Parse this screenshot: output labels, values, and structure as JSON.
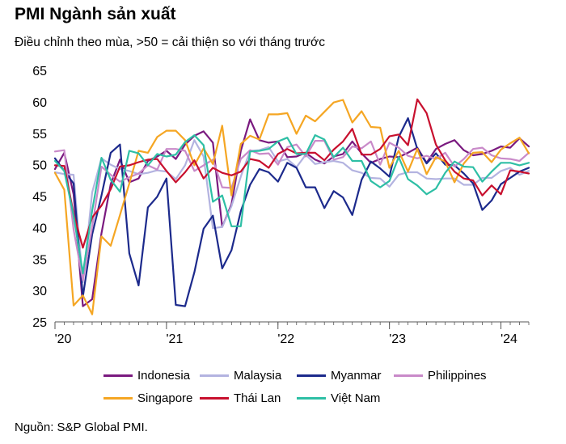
{
  "title": "PMI Ngành sản xuất",
  "subtitle": "Điều chỉnh theo mùa, >50 = cải thiện so với tháng trước",
  "source": "Nguồn: S&P Global PMI.",
  "chart_data": {
    "type": "line",
    "ylim": [
      25,
      65
    ],
    "yticks": [
      25,
      30,
      35,
      40,
      45,
      50,
      55,
      60,
      65
    ],
    "xticks": [
      {
        "label": "'20",
        "index": 0
      },
      {
        "label": "'21",
        "index": 12
      },
      {
        "label": "'22",
        "index": 24
      },
      {
        "label": "'23",
        "index": 36
      },
      {
        "label": "'24",
        "index": 48
      }
    ],
    "n_months": 52,
    "grid": false,
    "legend_position": "bottom",
    "series": [
      {
        "name": "Indonesia",
        "color": "#7a1a7f",
        "values": [
          49.3,
          51.9,
          45.3,
          27.5,
          28.6,
          39.1,
          46.9,
          50.8,
          47.2,
          47.8,
          50.6,
          51.3,
          52.2,
          50.9,
          53.2,
          54.6,
          55.3,
          53.5,
          40.1,
          43.7,
          52.2,
          57.2,
          53.9,
          53.5,
          53.7,
          51.2,
          51.3,
          51.9,
          50.8,
          50.2,
          51.3,
          51.7,
          53.7,
          51.8,
          50.3,
          50.9,
          51.3,
          51.2,
          51.9,
          52.7,
          50.3,
          52.5,
          53.3,
          53.9,
          52.3,
          51.5,
          51.7,
          52.2,
          52.9,
          52.7,
          54.2,
          52.9
        ]
      },
      {
        "name": "Malaysia",
        "color": "#b3b3e0",
        "values": [
          48.8,
          48.5,
          48.4,
          31.3,
          45.6,
          51.0,
          50.0,
          49.3,
          49.0,
          48.5,
          48.7,
          49.1,
          48.9,
          47.7,
          49.9,
          53.9,
          51.3,
          39.9,
          40.1,
          43.4,
          48.1,
          52.2,
          52.3,
          52.8,
          50.5,
          50.9,
          49.6,
          51.6,
          50.1,
          50.4,
          50.6,
          50.3,
          49.1,
          48.7,
          47.9,
          47.8,
          46.5,
          48.4,
          48.8,
          48.8,
          47.8,
          47.7,
          47.8,
          47.8,
          46.8,
          46.8,
          47.9,
          47.9,
          49.0,
          49.5,
          48.4,
          49.0
        ]
      },
      {
        "name": "Myanmar",
        "color": "#1c2a8c",
        "values": [
          51.0,
          49.0,
          47.0,
          29.0,
          38.9,
          45.1,
          51.9,
          53.2,
          35.9,
          30.8,
          43.2,
          44.9,
          47.8,
          27.7,
          27.5,
          32.9,
          39.8,
          41.9,
          33.5,
          36.4,
          42.6,
          46.8,
          49.3,
          48.8,
          47.3,
          50.3,
          49.5,
          46.4,
          46.4,
          43.1,
          45.8,
          44.8,
          42.0,
          47.6,
          50.5,
          49.4,
          48.1,
          54.4,
          57.4,
          52.5,
          50.2,
          51.8,
          50.0,
          49.9,
          48.6,
          47.0,
          42.8,
          44.3,
          46.9,
          47.9,
          48.9,
          49.5
        ]
      },
      {
        "name": "Philippines",
        "color": "#c98ac9",
        "values": [
          52.1,
          52.3,
          39.7,
          31.6,
          40.1,
          49.7,
          48.4,
          47.3,
          48.0,
          48.6,
          49.9,
          49.2,
          52.5,
          52.5,
          52.2,
          49.0,
          49.9,
          50.8,
          46.4,
          46.3,
          50.9,
          52.3,
          51.7,
          51.8,
          50.0,
          52.8,
          53.2,
          51.3,
          53.8,
          53.8,
          50.8,
          51.2,
          52.9,
          52.6,
          53.7,
          50.0,
          53.5,
          52.7,
          51.4,
          51.0,
          51.4,
          50.9,
          51.9,
          49.7,
          50.9,
          52.5,
          52.7,
          51.5,
          51.0,
          50.9,
          50.6,
          51.9
        ]
      },
      {
        "name": "Singapore",
        "color": "#f5a623",
        "values": [
          48.7,
          46.0,
          27.6,
          29.2,
          26.2,
          38.6,
          37.1,
          42.0,
          47.0,
          52.2,
          51.9,
          54.4,
          55.4,
          55.4,
          53.9,
          49.9,
          52.6,
          50.1,
          56.2,
          45.1,
          53.3,
          54.6,
          54.0,
          58.0,
          58.0,
          58.2,
          54.9,
          57.8,
          56.9,
          58.4,
          59.9,
          60.3,
          56.7,
          58.5,
          56.0,
          55.9,
          49.5,
          52.2,
          48.9,
          52.5,
          48.5,
          51.2,
          50.5,
          47.2,
          50.2,
          51.9,
          52.0,
          50.4,
          52.4,
          53.4,
          54.3,
          51.8
        ]
      },
      {
        "name": "Thái Lan",
        "color": "#c8102e",
        "values": [
          49.9,
          49.8,
          42.2,
          36.8,
          41.6,
          43.5,
          46.1,
          49.7,
          49.9,
          50.4,
          50.8,
          50.9,
          49.0,
          47.2,
          48.8,
          50.7,
          47.8,
          49.5,
          48.7,
          48.3,
          48.9,
          50.9,
          50.6,
          49.5,
          51.7,
          52.5,
          51.8,
          51.9,
          51.9,
          50.7,
          52.4,
          53.7,
          55.7,
          51.6,
          51.6,
          52.5,
          54.5,
          54.8,
          53.1,
          60.4,
          58.2,
          53.2,
          50.7,
          48.9,
          47.8,
          47.5,
          45.1,
          46.7,
          45.3,
          49.1,
          48.9,
          48.6
        ]
      },
      {
        "name": "Việt Nam",
        "color": "#2ebfa5",
        "values": [
          50.6,
          49.0,
          41.9,
          32.7,
          42.7,
          51.1,
          47.6,
          45.7,
          52.2,
          51.8,
          49.9,
          51.7,
          51.3,
          51.6,
          53.6,
          54.7,
          53.1,
          44.1,
          45.1,
          40.2,
          40.2,
          52.1,
          52.2,
          52.5,
          53.7,
          54.3,
          51.7,
          51.7,
          54.7,
          54.0,
          51.2,
          52.7,
          50.6,
          50.6,
          47.4,
          46.4,
          47.4,
          51.2,
          47.7,
          46.7,
          45.3,
          46.2,
          48.7,
          50.5,
          49.7,
          49.6,
          47.3,
          48.9,
          50.3,
          50.3,
          49.9,
          50.3
        ]
      }
    ]
  }
}
